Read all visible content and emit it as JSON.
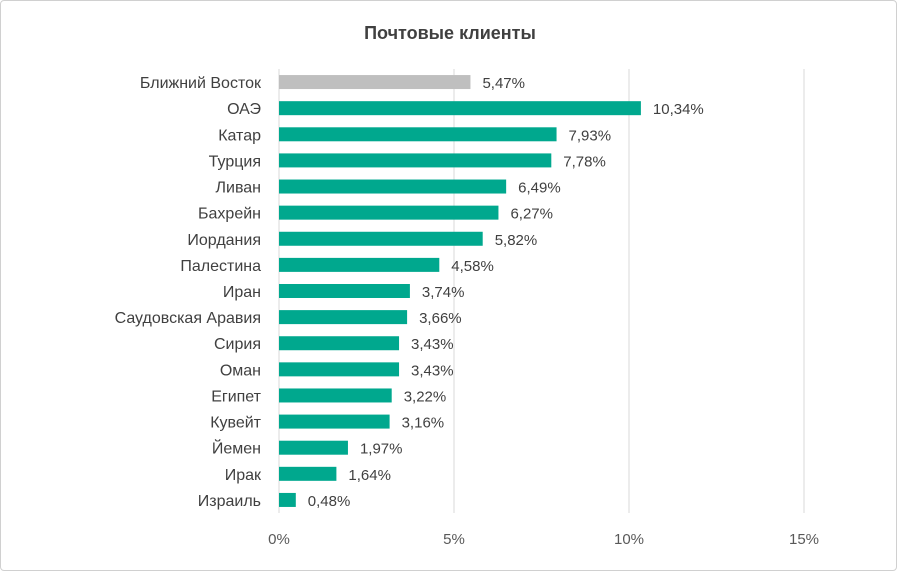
{
  "chart_data": {
    "type": "bar",
    "orientation": "horizontal",
    "title": "Почтовые клиенты",
    "xlabel": "",
    "ylabel": "",
    "categories": [
      "Ближний Восток",
      "ОАЭ",
      "Катар",
      "Турция",
      "Ливан",
      "Бахрейн",
      "Иордания",
      "Палестина",
      "Иран",
      "Саудовская Аравия",
      "Сирия",
      "Оман",
      "Египет",
      "Кувейт",
      "Йемен",
      "Ирак",
      "Израиль"
    ],
    "values": [
      5.47,
      10.34,
      7.93,
      7.78,
      6.49,
      6.27,
      5.82,
      4.58,
      3.74,
      3.66,
      3.43,
      3.43,
      3.22,
      3.16,
      1.97,
      1.64,
      0.48
    ],
    "data_labels": [
      "5,47%",
      "10,34%",
      "7,93%",
      "7,78%",
      "6,49%",
      "6,27%",
      "5,82%",
      "4,58%",
      "3,74%",
      "3,66%",
      "3,43%",
      "3,43%",
      "3,22%",
      "3,16%",
      "1,97%",
      "1,64%",
      "0,48%"
    ],
    "xlim": [
      0,
      15
    ],
    "x_ticks": [
      0,
      5,
      10,
      15
    ],
    "x_tick_labels": [
      "0%",
      "5%",
      "10%",
      "15%"
    ],
    "grid": true,
    "colors": {
      "highlight": "#BFBFBF",
      "bar": "#00A88E",
      "grid": "#D9D9D9"
    },
    "highlight_index": 0
  }
}
